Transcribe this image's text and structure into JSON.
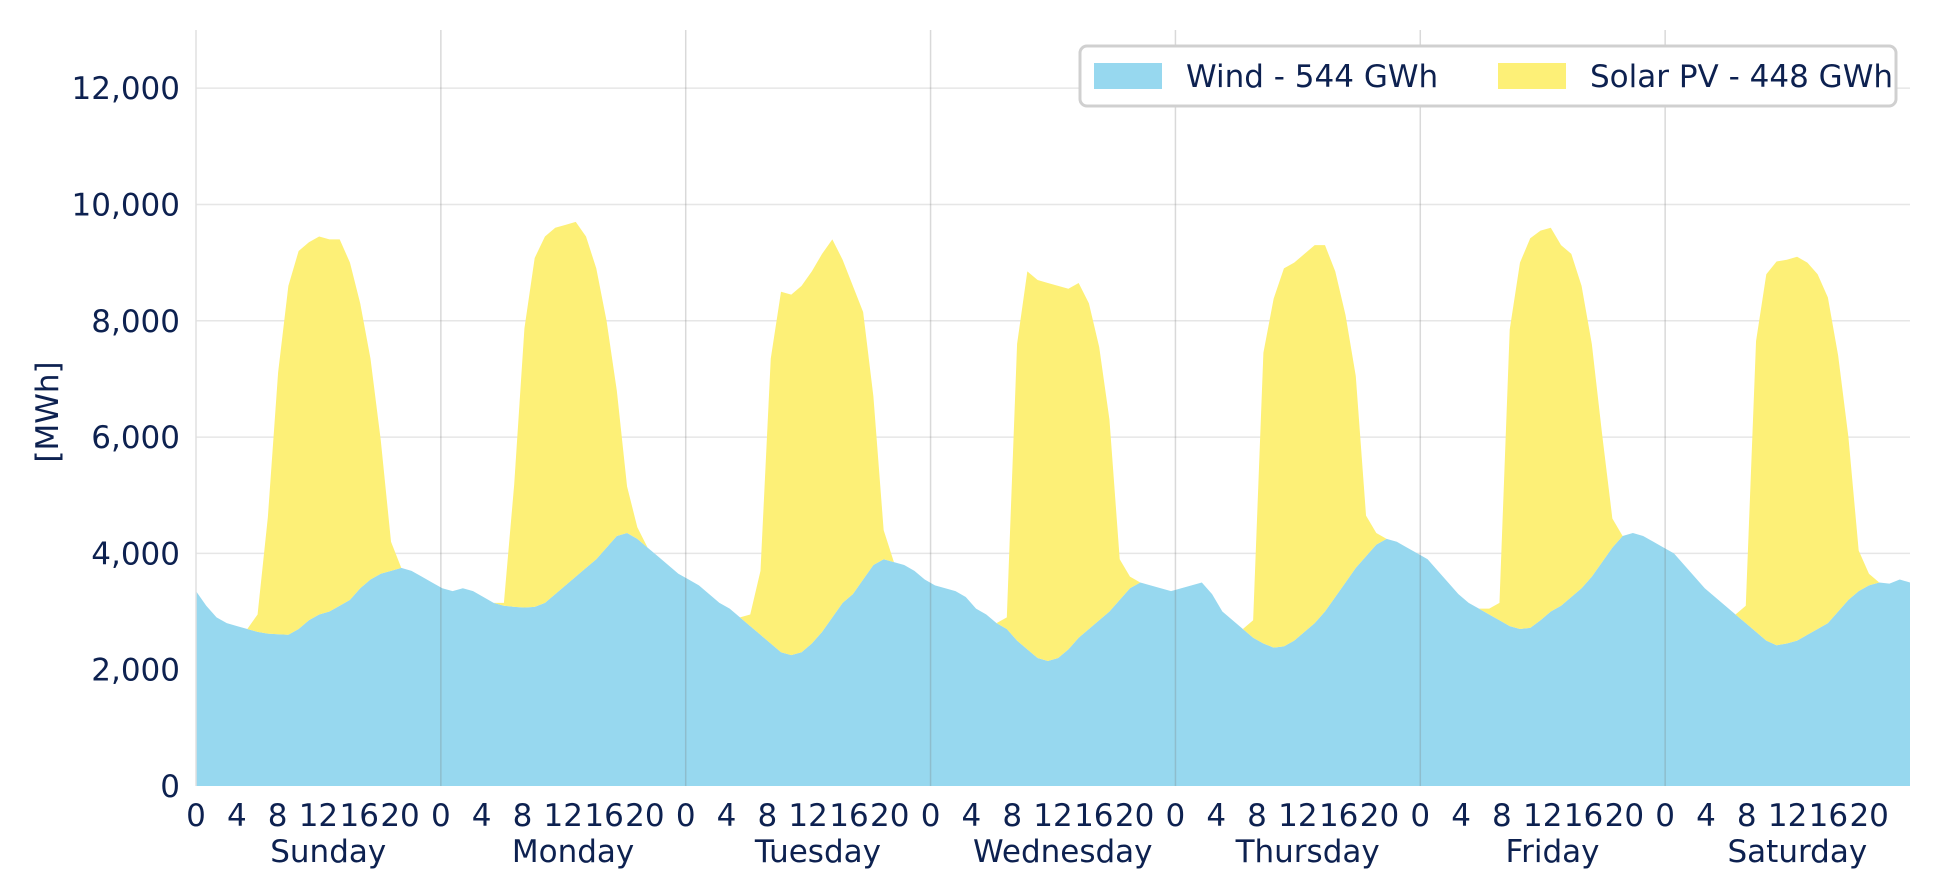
{
  "chart_data": {
    "type": "area",
    "stacked": true,
    "ylabel": "[MWh]",
    "ylim": [
      0,
      13000
    ],
    "yticks": [
      0,
      2000,
      4000,
      6000,
      8000,
      10000,
      12000
    ],
    "ytick_labels": [
      "0",
      "2,000",
      "4,000",
      "6,000",
      "8,000",
      "10,000",
      "12,000"
    ],
    "hour_tick_labels": [
      "0",
      "4",
      "8",
      "12",
      "16",
      "20"
    ],
    "days": [
      "Sunday",
      "Monday",
      "Tuesday",
      "Wednesday",
      "Thursday",
      "Friday",
      "Saturday"
    ],
    "hours_per_day": 24,
    "grid": true,
    "legend_position": "top-right",
    "series": [
      {
        "name": "Wind - 544 GWh",
        "color": "#97d8ef",
        "values": [
          3350,
          3100,
          2900,
          2800,
          2750,
          2700,
          2650,
          2620,
          2610,
          2600,
          2700,
          2850,
          2950,
          3000,
          3100,
          3200,
          3400,
          3550,
          3650,
          3700,
          3750,
          3700,
          3600,
          3500,
          3400,
          3350,
          3400,
          3350,
          3250,
          3150,
          3100,
          3080,
          3070,
          3080,
          3150,
          3300,
          3450,
          3600,
          3750,
          3900,
          4100,
          4300,
          4350,
          4250,
          4100,
          3950,
          3800,
          3650,
          3550,
          3450,
          3300,
          3150,
          3050,
          2900,
          2750,
          2600,
          2450,
          2300,
          2250,
          2300,
          2450,
          2650,
          2900,
          3150,
          3300,
          3550,
          3800,
          3900,
          3850,
          3800,
          3700,
          3550,
          3450,
          3400,
          3350,
          3250,
          3050,
          2950,
          2800,
          2700,
          2500,
          2350,
          2200,
          2150,
          2200,
          2350,
          2550,
          2700,
          2850,
          3000,
          3200,
          3400,
          3500,
          3450,
          3400,
          3350,
          3400,
          3450,
          3500,
          3300,
          3000,
          2850,
          2700,
          2550,
          2450,
          2380,
          2400,
          2500,
          2650,
          2800,
          3000,
          3250,
          3500,
          3750,
          3950,
          4150,
          4250,
          4200,
          4100,
          4000,
          3900,
          3700,
          3500,
          3300,
          3150,
          3050,
          2950,
          2850,
          2750,
          2700,
          2720,
          2850,
          3000,
          3100,
          3250,
          3400,
          3600,
          3850,
          4100,
          4300,
          4350,
          4300,
          4200,
          4100,
          4000,
          3800,
          3600,
          3400,
          3250,
          3100,
          2950,
          2800,
          2650,
          2500,
          2420,
          2450,
          2500,
          2600,
          2700,
          2800,
          3000,
          3200,
          3350,
          3450,
          3500,
          3480,
          3550,
          3500
        ]
      },
      {
        "name": "Solar PV - 448 GWh",
        "color": "#fdf077",
        "values": [
          0,
          0,
          0,
          0,
          0,
          0,
          300,
          2000,
          4500,
          6000,
          6500,
          6500,
          6500,
          6400,
          6300,
          5800,
          4900,
          3800,
          2300,
          500,
          0,
          0,
          0,
          0,
          0,
          0,
          0,
          0,
          0,
          0,
          50,
          2100,
          4800,
          6000,
          6300,
          6300,
          6200,
          6100,
          5700,
          5000,
          3900,
          2500,
          800,
          200,
          0,
          0,
          0,
          0,
          0,
          0,
          0,
          0,
          0,
          0,
          200,
          1100,
          4900,
          6200,
          6200,
          6300,
          6400,
          6500,
          6500,
          5900,
          5300,
          4600,
          2900,
          500,
          0,
          0,
          0,
          0,
          0,
          0,
          0,
          0,
          0,
          0,
          0,
          200,
          5100,
          6500,
          6500,
          6500,
          6400,
          6200,
          6100,
          5600,
          4700,
          3300,
          700,
          200,
          0,
          0,
          0,
          0,
          0,
          0,
          0,
          0,
          0,
          0,
          0,
          300,
          5000,
          6000,
          6500,
          6500,
          6500,
          6500,
          6300,
          5600,
          4600,
          3300,
          700,
          200,
          0,
          0,
          0,
          0,
          0,
          0,
          0,
          0,
          0,
          0,
          100,
          300,
          5100,
          6300,
          6700,
          6700,
          6600,
          6200,
          5900,
          5200,
          4000,
          2200,
          500,
          0,
          0,
          0,
          0,
          0,
          0,
          0,
          0,
          0,
          0,
          0,
          0,
          300,
          5000,
          6300,
          6600,
          6600,
          6600,
          6400,
          6100,
          5600,
          4400,
          2800,
          700,
          200,
          0,
          0,
          0,
          0
        ]
      }
    ]
  }
}
